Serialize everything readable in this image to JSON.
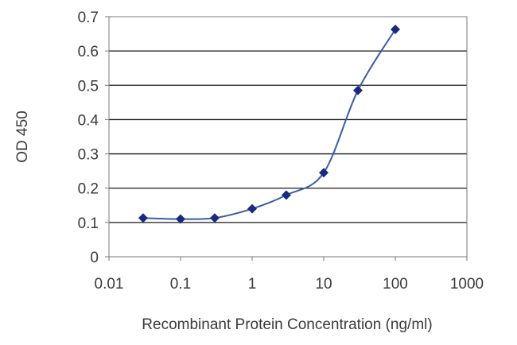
{
  "chart_data": {
    "type": "line",
    "title": "",
    "xlabel": "Recombinant Protein Concentration (ng/ml)",
    "ylabel": "OD 450",
    "x_scale": "log",
    "xlim": [
      0.01,
      1000
    ],
    "ylim": [
      0,
      0.7
    ],
    "x_ticks": [
      "0.01",
      "0.1",
      "1",
      "10",
      "100",
      "1000"
    ],
    "y_ticks": [
      "0",
      "0.1",
      "0.2",
      "0.3",
      "0.4",
      "0.5",
      "0.6",
      "0.7"
    ],
    "grid": "horizontal",
    "legend": "none",
    "line_color": "#3b5ba8",
    "marker_color": "#1a2a80",
    "series": [
      {
        "x": [
          0.03,
          0.1,
          0.3,
          1,
          3,
          10,
          30,
          100
        ],
        "y": [
          0.113,
          0.11,
          0.113,
          0.14,
          0.18,
          0.245,
          0.485,
          0.663
        ]
      }
    ]
  }
}
